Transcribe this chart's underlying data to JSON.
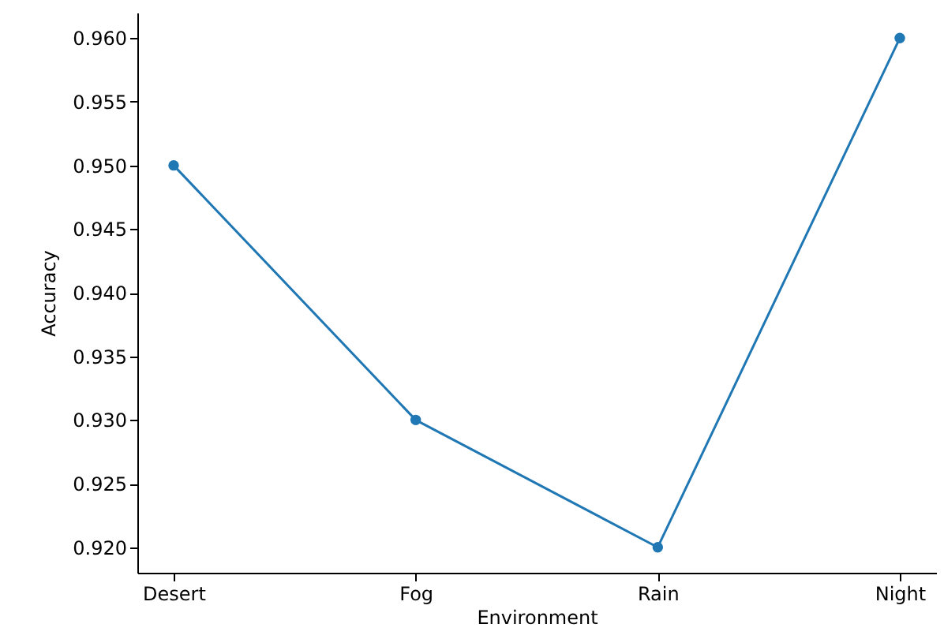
{
  "chart_data": {
    "type": "line",
    "xlabel": "Environment",
    "ylabel": "Accuracy",
    "categories": [
      "Desert",
      "Fog",
      "Rain",
      "Night"
    ],
    "series": [
      {
        "color": "#1f77b4",
        "values": [
          0.95,
          0.93,
          0.92,
          0.96
        ]
      }
    ],
    "ylim": [
      0.918,
      0.962
    ],
    "yticks": [
      {
        "value": 0.92,
        "label": "0.920"
      },
      {
        "value": 0.925,
        "label": "0.925"
      },
      {
        "value": 0.93,
        "label": "0.930"
      },
      {
        "value": 0.935,
        "label": "0.935"
      },
      {
        "value": 0.94,
        "label": "0.940"
      },
      {
        "value": 0.945,
        "label": "0.945"
      },
      {
        "value": 0.95,
        "label": "0.950"
      },
      {
        "value": 0.955,
        "label": "0.955"
      },
      {
        "value": 0.96,
        "label": "0.960"
      }
    ],
    "grid": false,
    "marker": "circle",
    "line_style": "solid"
  }
}
